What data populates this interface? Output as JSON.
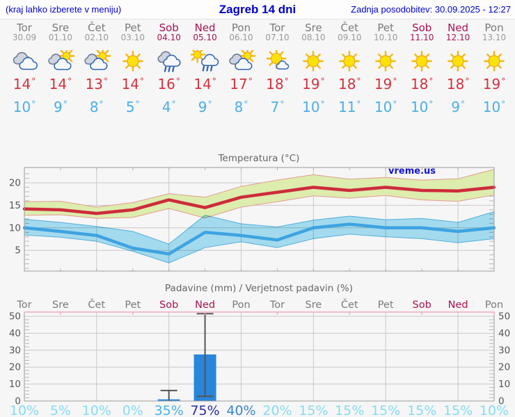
{
  "header": {
    "hint": "(kraj lahko izberete v meniju)",
    "title": "Zagreb 14 dni",
    "updated": "Zadnja posodobitev: 30.09.2025 - 12:27"
  },
  "colors": {
    "accent_blue": "#0000cc",
    "weekend": "#aa1152",
    "weekday": "#7a7a7a",
    "temp_max": "#d5303e",
    "temp_min": "#4aaee8",
    "tmax_line": "#ce2b3c",
    "tmax_band": "#dcedad",
    "tmax_band_edge": "#e59a8f",
    "tmin_line": "#3ea3e1",
    "tmin_band": "#a9e2f6",
    "tmin_band_edge": "#55b5e5",
    "bar_fill": "#2a86db",
    "whisker": "#555555",
    "grid": "#c8c8c8",
    "axis": "#999999",
    "axis_label": "#555555",
    "chart_title": "#666666",
    "precip_top_border": "#f2a9bf"
  },
  "days": [
    {
      "name": "Tor",
      "date": "30.09",
      "weekend": false,
      "icon": "cloudy",
      "tmax": "14",
      "tmin": "10"
    },
    {
      "name": "Sre",
      "date": "01.10",
      "weekend": false,
      "icon": "partly-sunny",
      "tmax": "14",
      "tmin": "9"
    },
    {
      "name": "Čet",
      "date": "02.10",
      "weekend": false,
      "icon": "partly-sunny",
      "tmax": "13",
      "tmin": "8"
    },
    {
      "name": "Pet",
      "date": "03.10",
      "weekend": false,
      "icon": "sunny",
      "tmax": "14",
      "tmin": "5"
    },
    {
      "name": "Sob",
      "date": "04.10",
      "weekend": true,
      "icon": "rain",
      "tmax": "16",
      "tmin": "4"
    },
    {
      "name": "Ned",
      "date": "05.10",
      "weekend": true,
      "icon": "sun-rain",
      "tmax": "14",
      "tmin": "9"
    },
    {
      "name": "Pon",
      "date": "06.10",
      "weekend": false,
      "icon": "partly-sunny",
      "tmax": "17",
      "tmin": "8"
    },
    {
      "name": "Tor",
      "date": "07.10",
      "weekend": false,
      "icon": "sun-small-cloud",
      "tmax": "18",
      "tmin": "7"
    },
    {
      "name": "Sre",
      "date": "08.10",
      "weekend": false,
      "icon": "sunny",
      "tmax": "19",
      "tmin": "10"
    },
    {
      "name": "Čet",
      "date": "09.10",
      "weekend": false,
      "icon": "sunny",
      "tmax": "18",
      "tmin": "11"
    },
    {
      "name": "Pet",
      "date": "10.10",
      "weekend": false,
      "icon": "sunny",
      "tmax": "19",
      "tmin": "10"
    },
    {
      "name": "Sob",
      "date": "11.10",
      "weekend": true,
      "icon": "sunny",
      "tmax": "18",
      "tmin": "10"
    },
    {
      "name": "Ned",
      "date": "12.10",
      "weekend": true,
      "icon": "sunny",
      "tmax": "18",
      "tmin": "9"
    },
    {
      "name": "Pon",
      "date": "13.10",
      "weekend": false,
      "icon": "sunny",
      "tmax": "19",
      "tmin": "10"
    }
  ],
  "chart_data": [
    {
      "type": "line",
      "title": "Temperatura (°C)",
      "watermark": "vreme.us",
      "categories": [
        "Tor 30.09",
        "Sre 01.10",
        "Čet 02.10",
        "Pet 03.10",
        "Sob 04.10",
        "Ned 05.10",
        "Pon 06.10",
        "Tor 07.10",
        "Sre 08.10",
        "Čet 09.10",
        "Pet 10.10",
        "Sob 11.10",
        "Ned 12.10",
        "Pon 13.10"
      ],
      "ylabel": "°C",
      "ylim": [
        0.4,
        23.4
      ],
      "yticks": [
        5,
        10,
        15,
        20
      ],
      "grid": true,
      "series": [
        {
          "name": "tmax",
          "values": [
            14.2,
            14.0,
            13.2,
            14.0,
            16.2,
            14.5,
            16.8,
            17.9,
            19.0,
            18.3,
            19.0,
            18.3,
            18.2,
            19.0
          ]
        },
        {
          "name": "tmax_band_upper",
          "values": [
            15.8,
            15.9,
            14.6,
            15.6,
            17.6,
            16.8,
            19.2,
            20.6,
            21.8,
            20.8,
            21.2,
            20.6,
            20.9,
            23.0
          ]
        },
        {
          "name": "tmax_band_lower",
          "values": [
            12.8,
            12.9,
            12.1,
            12.3,
            14.3,
            12.2,
            14.6,
            15.8,
            17.1,
            16.6,
            17.2,
            16.2,
            15.9,
            17.3
          ]
        },
        {
          "name": "tmin",
          "values": [
            10.0,
            9.2,
            8.3,
            5.5,
            4.2,
            9.0,
            8.3,
            7.3,
            10.0,
            10.8,
            10.0,
            10.0,
            9.2,
            10.0
          ]
        },
        {
          "name": "tmin_band_upper",
          "values": [
            11.9,
            11.2,
            10.3,
            9.2,
            6.4,
            12.8,
            10.9,
            10.2,
            11.7,
            12.6,
            11.8,
            12.1,
            11.2,
            13.6
          ]
        },
        {
          "name": "tmin_band_lower",
          "values": [
            8.4,
            7.9,
            7.0,
            4.8,
            2.2,
            5.6,
            6.9,
            5.6,
            7.6,
            8.6,
            8.0,
            7.6,
            6.7,
            7.6
          ]
        }
      ]
    },
    {
      "type": "bar",
      "title": "Padavine (mm) / Verjetnost padavin (%)",
      "categories": [
        "Tor",
        "Sre",
        "Čet",
        "Pet",
        "Sob",
        "Ned",
        "Pon",
        "Tor",
        "Sre",
        "Čet",
        "Pet",
        "Sob",
        "Ned",
        "Pon"
      ],
      "weekend_flags": [
        false,
        false,
        false,
        false,
        true,
        true,
        false,
        false,
        false,
        false,
        false,
        true,
        true,
        false
      ],
      "values": [
        0,
        0,
        0,
        0,
        1.0,
        27.5,
        0,
        0,
        0,
        0,
        0,
        0,
        0,
        0
      ],
      "whiskers": [
        null,
        null,
        null,
        null,
        {
          "min": 0,
          "max": 6.2
        },
        {
          "min": 2.8,
          "max": 51.5
        },
        null,
        null,
        null,
        null,
        null,
        null,
        null,
        null
      ],
      "probabilities": [
        "10%",
        "5%",
        "10%",
        "0%",
        "35%",
        "75%",
        "40%",
        "20%",
        "15%",
        "15%",
        "15%",
        "15%",
        "15%",
        "10%"
      ],
      "prob_colors": [
        "#85dcf2",
        "#85dcf2",
        "#85dcf2",
        "#85dcf2",
        "#47b1e8",
        "#2a2fa6",
        "#3c85d6",
        "#85dcf2",
        "#85dcf2",
        "#85dcf2",
        "#85dcf2",
        "#85dcf2",
        "#85dcf2",
        "#85dcf2"
      ],
      "ylim": [
        0,
        52.5
      ],
      "yticks": [
        0,
        10,
        20,
        30,
        40,
        50
      ],
      "grid": true
    }
  ]
}
